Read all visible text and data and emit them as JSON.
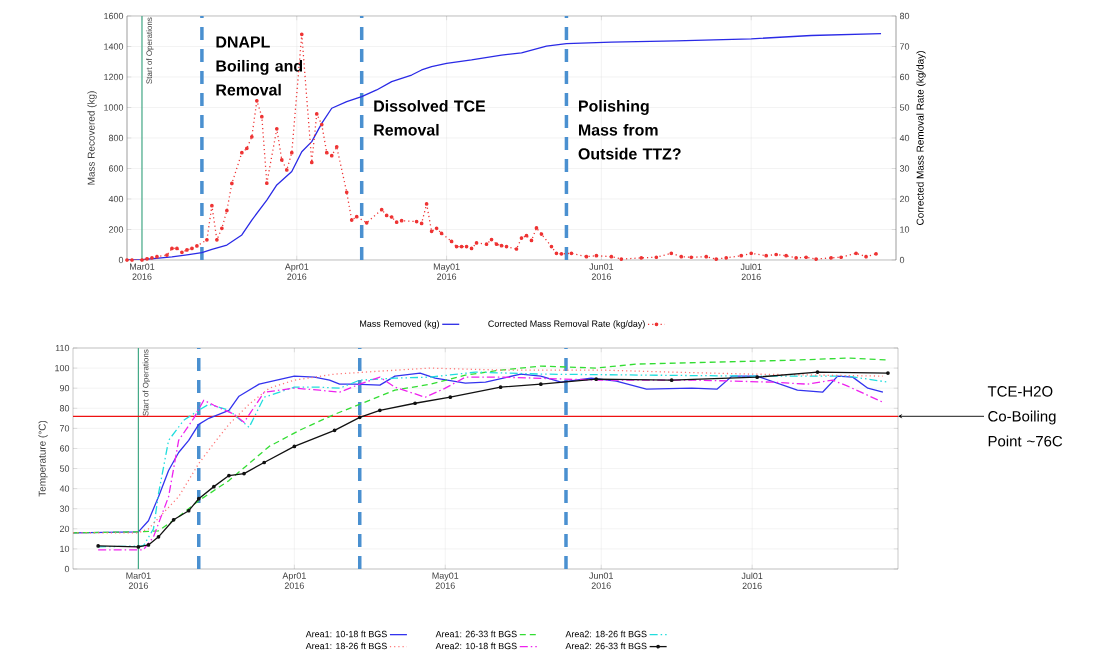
{
  "chart_data": [
    {
      "type": "line",
      "ylabel": "Mass Recovered (kg)",
      "y2label": "Corrected Mass Removal Rate (kg/day)",
      "xlim": [
        "2016-02-27",
        "2016-07-30"
      ],
      "xticks": [
        {
          "value": "2016-03-01",
          "label": "Mar01 2016"
        },
        {
          "value": "2016-04-01",
          "label": "Apr01 2016"
        },
        {
          "value": "2016-05-01",
          "label": "May01 2016"
        },
        {
          "value": "2016-06-01",
          "label": "Jun01 2016"
        },
        {
          "value": "2016-07-01",
          "label": "Jul01 2016"
        }
      ],
      "ylim": [
        0,
        1600
      ],
      "yticks": [
        0,
        200,
        400,
        600,
        800,
        1000,
        1200,
        1400,
        1600
      ],
      "y2lim": [
        0,
        80
      ],
      "y2ticks": [
        0,
        10,
        20,
        30,
        40,
        50,
        60,
        70,
        80
      ],
      "grid": true,
      "legend": "bottom",
      "ref_lines": [
        {
          "axis": "x",
          "value": "2016-03-01",
          "label": "Start of Operations",
          "color": "#44aa88",
          "line_style": "solid"
        },
        {
          "axis": "x",
          "value": "2016-03-13",
          "label": "DNAPL Boiling and Removal",
          "color": "#4a90d0",
          "line_style": "dashed"
        },
        {
          "axis": "x",
          "value": "2016-04-14",
          "label": "Dissolved TCE Removal",
          "color": "#4a90d0",
          "line_style": "dashed"
        },
        {
          "axis": "x",
          "value": "2016-05-25",
          "label": "Polishing Mass from Outside TTZ?",
          "color": "#4a90d0",
          "line_style": "dashed"
        }
      ],
      "series": [
        {
          "name": "Mass Removed (kg)",
          "color": "#2a2ae6",
          "line_style": "solid",
          "marker": "none",
          "x": [
            "2016-02-27",
            "2016-03-01",
            "2016-03-07",
            "2016-03-10",
            "2016-03-13",
            "2016-03-15",
            "2016-03-18",
            "2016-03-21",
            "2016-03-23",
            "2016-03-26",
            "2016-03-28",
            "2016-03-31",
            "2016-04-02",
            "2016-04-04",
            "2016-04-06",
            "2016-04-08",
            "2016-04-11",
            "2016-04-14",
            "2016-04-17",
            "2016-04-20",
            "2016-04-24",
            "2016-04-26",
            "2016-04-28",
            "2016-05-01",
            "2016-05-06",
            "2016-05-12",
            "2016-05-16",
            "2016-05-21",
            "2016-05-25",
            "2016-06-03",
            "2016-06-16",
            "2016-07-01",
            "2016-07-13",
            "2016-07-27"
          ],
          "values": [
            0,
            2,
            20,
            33,
            48,
            70,
            98,
            164,
            262,
            393,
            492,
            580,
            710,
            776,
            896,
            995,
            1038,
            1071,
            1115,
            1170,
            1213,
            1246,
            1268,
            1290,
            1312,
            1344,
            1358,
            1402,
            1419,
            1428,
            1437,
            1450,
            1472,
            1485
          ]
        },
        {
          "name": "Corrected Mass Removal Rate (kg/day)",
          "color": "#ee3333",
          "axis": "y2",
          "line_style": "dotted",
          "marker": "circle",
          "x": [
            "2016-02-27",
            "2016-02-28",
            "2016-03-01",
            "2016-03-02",
            "2016-03-03",
            "2016-03-04",
            "2016-03-06",
            "2016-03-07",
            "2016-03-08",
            "2016-03-09",
            "2016-03-10",
            "2016-03-11",
            "2016-03-12",
            "2016-03-14",
            "2016-03-15",
            "2016-03-16",
            "2016-03-17",
            "2016-03-18",
            "2016-03-19",
            "2016-03-21",
            "2016-03-22",
            "2016-03-23",
            "2016-03-24",
            "2016-03-25",
            "2016-03-26",
            "2016-03-28",
            "2016-03-29",
            "2016-03-30",
            "2016-03-31",
            "2016-04-02",
            "2016-04-04",
            "2016-04-05",
            "2016-04-06",
            "2016-04-07",
            "2016-04-08",
            "2016-04-09",
            "2016-04-11",
            "2016-04-12",
            "2016-04-13",
            "2016-04-15",
            "2016-04-18",
            "2016-04-19",
            "2016-04-20",
            "2016-04-21",
            "2016-04-22",
            "2016-04-25",
            "2016-04-26",
            "2016-04-27",
            "2016-04-28",
            "2016-04-29",
            "2016-04-30",
            "2016-05-02",
            "2016-05-03",
            "2016-05-04",
            "2016-05-05",
            "2016-05-06",
            "2016-05-07",
            "2016-05-09",
            "2016-05-10",
            "2016-05-11",
            "2016-05-12",
            "2016-05-13",
            "2016-05-15",
            "2016-05-16",
            "2016-05-17",
            "2016-05-18",
            "2016-05-19",
            "2016-05-20",
            "2016-05-22",
            "2016-05-23",
            "2016-05-24",
            "2016-05-26",
            "2016-05-29",
            "2016-05-31",
            "2016-06-03",
            "2016-06-05",
            "2016-06-09",
            "2016-06-12",
            "2016-06-15",
            "2016-06-17",
            "2016-06-19",
            "2016-06-22",
            "2016-06-24",
            "2016-06-26",
            "2016-06-29",
            "2016-07-01",
            "2016-07-04",
            "2016-07-06",
            "2016-07-08",
            "2016-07-10",
            "2016-07-12",
            "2016-07-14",
            "2016-07-17",
            "2016-07-19",
            "2016-07-22",
            "2016-07-24",
            "2016-07-26"
          ],
          "values": [
            0,
            0,
            0,
            0.4,
            0.7,
            1.1,
            1.6,
            3.8,
            3.8,
            2.5,
            3.3,
            3.8,
            4.6,
            6.6,
            17.8,
            6.6,
            10.4,
            16.2,
            25.1,
            35.2,
            36.6,
            40.4,
            52.2,
            47,
            25.2,
            43,
            32.8,
            29.5,
            35.2,
            74,
            32,
            47.9,
            44.4,
            35.2,
            34.2,
            37.1,
            22.2,
            13.1,
            14.2,
            12.2,
            16.5,
            14.6,
            14.1,
            12.4,
            12.9,
            12.6,
            12,
            18.4,
            9.4,
            10.4,
            8.7,
            6.1,
            4.4,
            4.4,
            4.4,
            3.8,
            5.6,
            5.2,
            6.7,
            5.2,
            4.7,
            4.4,
            3.6,
            7.2,
            8,
            6.4,
            10.5,
            8.5,
            4.4,
            2.2,
            2,
            2.2,
            1.1,
            1.4,
            1.1,
            0.3,
            0.7,
            0.9,
            2.2,
            1.1,
            0.9,
            1.1,
            0.3,
            0.7,
            1.4,
            2.2,
            1.4,
            1.8,
            1.4,
            0.7,
            0.9,
            0.3,
            0.7,
            0.9,
            2.2,
            1.1,
            2
          ]
        }
      ]
    },
    {
      "type": "line",
      "ylabel": "Temperature (°C)",
      "xlim": [
        "2016-02-17",
        "2016-07-30"
      ],
      "xticks": [
        {
          "value": "2016-03-01",
          "label": "Mar01 2016"
        },
        {
          "value": "2016-04-01",
          "label": "Apr01 2016"
        },
        {
          "value": "2016-05-01",
          "label": "May01 2016"
        },
        {
          "value": "2016-06-01",
          "label": "Jun01 2016"
        },
        {
          "value": "2016-07-01",
          "label": "Jul01 2016"
        }
      ],
      "ylim": [
        0,
        110
      ],
      "yticks": [
        0,
        10,
        20,
        30,
        40,
        50,
        60,
        70,
        80,
        90,
        100,
        110
      ],
      "grid": true,
      "legend": "bottom",
      "ref_lines": [
        {
          "axis": "x",
          "value": "2016-03-01",
          "label": "Start of Operations",
          "color": "#44aa88",
          "line_style": "solid"
        },
        {
          "axis": "x",
          "value": "2016-03-13",
          "color": "#4a90d0",
          "line_style": "dashed"
        },
        {
          "axis": "x",
          "value": "2016-04-14",
          "color": "#4a90d0",
          "line_style": "dashed"
        },
        {
          "axis": "x",
          "value": "2016-05-25",
          "color": "#4a90d0",
          "line_style": "dashed"
        },
        {
          "axis": "y",
          "value": 76,
          "label": "TCE-H2O Co-Boiling Point ~76C",
          "color": "#ee1111",
          "line_style": "solid"
        }
      ],
      "series": [
        {
          "name": "Area1: 10-18 ft BGS",
          "color": "#3333ee",
          "line_style": "solid",
          "marker": "none",
          "x": [
            "2016-02-17",
            "2016-03-01",
            "2016-03-03",
            "2016-03-05",
            "2016-03-07",
            "2016-03-09",
            "2016-03-11",
            "2016-03-13",
            "2016-03-15",
            "2016-03-19",
            "2016-03-21",
            "2016-03-25",
            "2016-04-01",
            "2016-04-05",
            "2016-04-08",
            "2016-04-10",
            "2016-04-13",
            "2016-04-18",
            "2016-04-21",
            "2016-04-26",
            "2016-04-29",
            "2016-05-05",
            "2016-05-09",
            "2016-05-16",
            "2016-05-20",
            "2016-05-24",
            "2016-05-30",
            "2016-06-04",
            "2016-06-10",
            "2016-06-19",
            "2016-06-24",
            "2016-06-27",
            "2016-07-02",
            "2016-07-10",
            "2016-07-15",
            "2016-07-18",
            "2016-07-21",
            "2016-07-24",
            "2016-07-27"
          ],
          "values": [
            18,
            18.5,
            24,
            36,
            49,
            58,
            64,
            72,
            75,
            79,
            86,
            92,
            96,
            95.5,
            94,
            92,
            92,
            91.5,
            96,
            97.5,
            95,
            92.5,
            93,
            97,
            96,
            93,
            95,
            93.5,
            89.5,
            90,
            89.5,
            96,
            96,
            89,
            88,
            96,
            95.5,
            90,
            88
          ]
        },
        {
          "name": "Area1: 26-33 ft BGS",
          "color": "#33dd33",
          "line_style": "dashed",
          "marker": "none",
          "x": [
            "2016-02-17",
            "2016-03-01",
            "2016-03-05",
            "2016-03-09",
            "2016-03-13",
            "2016-03-19",
            "2016-03-23",
            "2016-03-27",
            "2016-04-02",
            "2016-04-09",
            "2016-04-14",
            "2016-04-21",
            "2016-04-28",
            "2016-05-05",
            "2016-05-12",
            "2016-05-20",
            "2016-05-31",
            "2016-06-08",
            "2016-06-24",
            "2016-07-10",
            "2016-07-20",
            "2016-07-28"
          ],
          "values": [
            18,
            18.5,
            19,
            26,
            34,
            44,
            52.5,
            61,
            69,
            77,
            82,
            89,
            92,
            96.5,
            99,
            101,
            100,
            102,
            103,
            104,
            105,
            104
          ]
        },
        {
          "name": "Area2: 18-26 ft BGS",
          "color": "#22dddd",
          "line_style": "dashdotdot",
          "marker": "none",
          "x": [
            "2016-02-22",
            "2016-03-02",
            "2016-03-04",
            "2016-03-05",
            "2016-03-07",
            "2016-03-10",
            "2016-03-13",
            "2016-03-15",
            "2016-03-19",
            "2016-03-23",
            "2016-03-26",
            "2016-04-01",
            "2016-04-06",
            "2016-04-10",
            "2016-04-14",
            "2016-04-21",
            "2016-04-28",
            "2016-05-07",
            "2016-05-20",
            "2016-06-10",
            "2016-07-01",
            "2016-07-20",
            "2016-07-28"
          ],
          "values": [
            11,
            11.5,
            20,
            37.5,
            64,
            74,
            79,
            82,
            79,
            70.5,
            85.5,
            90.5,
            90.5,
            90,
            94,
            95,
            95.5,
            98,
            97,
            96.5,
            96,
            96,
            93
          ]
        },
        {
          "name": "Area1: 18-26 ft BGS",
          "color": "#ff7777",
          "line_style": "dotted",
          "marker": "none",
          "x": [
            "2016-02-17",
            "2016-03-01",
            "2016-03-03",
            "2016-03-09",
            "2016-03-13",
            "2016-03-16",
            "2016-03-19",
            "2016-03-23",
            "2016-03-27",
            "2016-04-01",
            "2016-04-09",
            "2016-04-15",
            "2016-04-28",
            "2016-05-12",
            "2016-05-20",
            "2016-06-01",
            "2016-06-15",
            "2016-07-01",
            "2016-07-27"
          ],
          "values": [
            18,
            18,
            20,
            36,
            52.5,
            62.5,
            72,
            82,
            90,
            94,
            97,
            98,
            100,
            99,
            99,
            99,
            98,
            97,
            96
          ]
        },
        {
          "name": "Area2: 10-18 ft BGS",
          "color": "#ee22ee",
          "line_style": "dashdot",
          "marker": "none",
          "x": [
            "2016-02-22",
            "2016-03-02",
            "2016-03-04",
            "2016-03-07",
            "2016-03-09",
            "2016-03-12",
            "2016-03-14",
            "2016-03-16",
            "2016-03-20",
            "2016-03-22",
            "2016-03-24",
            "2016-03-26",
            "2016-04-01",
            "2016-04-06",
            "2016-04-10",
            "2016-04-14",
            "2016-04-18",
            "2016-04-21",
            "2016-04-27",
            "2016-05-01",
            "2016-05-05",
            "2016-05-12",
            "2016-06-01",
            "2016-06-20",
            "2016-07-05",
            "2016-07-12",
            "2016-07-17",
            "2016-07-20",
            "2016-07-27"
          ],
          "values": [
            9.5,
            9.5,
            16,
            36,
            64,
            75,
            84,
            81.5,
            77,
            73,
            80.5,
            88,
            90,
            89,
            88,
            92,
            95.5,
            90.5,
            85.5,
            90,
            95.5,
            95.5,
            94,
            94,
            93,
            92,
            94,
            91,
            83
          ]
        },
        {
          "name": "Area2: 26-33 ft BGS",
          "color": "#111111",
          "line_style": "solid",
          "marker": "circle",
          "x": [
            "2016-02-22",
            "2016-03-01",
            "2016-03-03",
            "2016-03-05",
            "2016-03-08",
            "2016-03-11",
            "2016-03-13",
            "2016-03-16",
            "2016-03-19",
            "2016-03-22",
            "2016-03-26",
            "2016-04-01",
            "2016-04-09",
            "2016-04-14",
            "2016-04-18",
            "2016-04-25",
            "2016-05-02",
            "2016-05-12",
            "2016-05-20",
            "2016-05-31",
            "2016-06-15",
            "2016-07-02",
            "2016-07-14",
            "2016-07-28"
          ],
          "values": [
            11.5,
            11,
            12,
            16,
            24.5,
            29,
            35,
            41,
            46.5,
            47.5,
            53,
            61,
            69,
            75.5,
            79,
            82.5,
            85.5,
            90.5,
            92,
            94.5,
            94,
            95.5,
            98,
            97.5
          ]
        }
      ]
    }
  ]
}
